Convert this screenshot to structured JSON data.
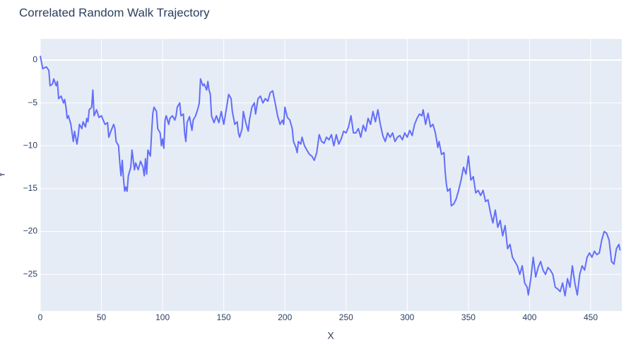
{
  "chart_data": {
    "type": "line",
    "title": "Correlated Random Walk Trajectory",
    "x_label": "X",
    "y_label": "Y",
    "color": "#636efa",
    "grid": true,
    "xlim": [
      0,
      475.4
    ],
    "ylim": [
      -29.27,
      2.47
    ],
    "xticks": [
      0,
      50,
      100,
      150,
      200,
      250,
      300,
      350,
      400,
      450
    ],
    "yticks": [
      {
        "value": -25,
        "label": "−25"
      },
      {
        "value": -20,
        "label": "−20"
      },
      {
        "value": -15,
        "label": "−15"
      },
      {
        "value": -10,
        "label": "−10"
      },
      {
        "value": -5,
        "label": "−5"
      },
      0
    ],
    "x": [
      0,
      2,
      5,
      7,
      8,
      10,
      11,
      13,
      14,
      15,
      17,
      19,
      20,
      21,
      22,
      23,
      25,
      26,
      27,
      28,
      30,
      31,
      32,
      34,
      35,
      37,
      38,
      39,
      40,
      42,
      43,
      44,
      46,
      48,
      50,
      52,
      53,
      55,
      56,
      58,
      60,
      61,
      62,
      64,
      65,
      66,
      67,
      68,
      69,
      70,
      71,
      72,
      74,
      75,
      77,
      78,
      80,
      82,
      84,
      85,
      86,
      87,
      88,
      90,
      91,
      92,
      93,
      95,
      96,
      98,
      99,
      100,
      101,
      102,
      103,
      105,
      106,
      108,
      110,
      111,
      112,
      114,
      115,
      117,
      118,
      119,
      120,
      122,
      124,
      125,
      127,
      129,
      130,
      131,
      133,
      134,
      136,
      137,
      138,
      139,
      140,
      142,
      144,
      146,
      148,
      150,
      152,
      154,
      156,
      157,
      159,
      161,
      162,
      163,
      165,
      166,
      168,
      170,
      171,
      173,
      175,
      176,
      178,
      180,
      182,
      184,
      186,
      188,
      190,
      192,
      194,
      196,
      198,
      199,
      200,
      202,
      204,
      206,
      207,
      209,
      210,
      211,
      213,
      214,
      216,
      218,
      220,
      222,
      224,
      226,
      228,
      230,
      232,
      234,
      236,
      238,
      240,
      242,
      244,
      246,
      248,
      250,
      252,
      254,
      256,
      258,
      260,
      262,
      264,
      266,
      268,
      270,
      272,
      274,
      276,
      278,
      280,
      282,
      284,
      286,
      288,
      290,
      292,
      294,
      296,
      298,
      300,
      302,
      304,
      306,
      308,
      310,
      312,
      313,
      315,
      317,
      319,
      321,
      323,
      325,
      326,
      328,
      330,
      331,
      332,
      333,
      335,
      336,
      338,
      340,
      342,
      344,
      346,
      348,
      350,
      352,
      354,
      356,
      358,
      360,
      362,
      364,
      366,
      368,
      370,
      372,
      374,
      376,
      378,
      380,
      382,
      384,
      386,
      388,
      390,
      392,
      394,
      396,
      398,
      399,
      401,
      403,
      405,
      407,
      409,
      411,
      413,
      415,
      417,
      419,
      421,
      423,
      425,
      427,
      429,
      431,
      433,
      435,
      437,
      439,
      441,
      443,
      445,
      447,
      449,
      451,
      453,
      455,
      457,
      459,
      461,
      463,
      465,
      467,
      469,
      471,
      473,
      474
    ],
    "values": [
      0.5,
      -1,
      -0.8,
      -1.2,
      -3,
      -2.8,
      -2.2,
      -3,
      -2.5,
      -4.5,
      -4.2,
      -5,
      -4.6,
      -5.5,
      -6.8,
      -6.5,
      -7.5,
      -8.5,
      -9.5,
      -8.3,
      -9.8,
      -8.8,
      -7.5,
      -8,
      -7.2,
      -7.8,
      -6.8,
      -7.2,
      -5.8,
      -5.5,
      -3.5,
      -6.5,
      -5.8,
      -6.7,
      -6.5,
      -7.2,
      -7.5,
      -7.3,
      -9,
      -8.2,
      -7.5,
      -8,
      -9.5,
      -10,
      -12,
      -13.5,
      -11.7,
      -13.8,
      -15.3,
      -14.8,
      -15.3,
      -13.5,
      -12.5,
      -10.5,
      -12.8,
      -12,
      -12.8,
      -11.8,
      -12.5,
      -13.5,
      -11.5,
      -13.3,
      -10.5,
      -11.2,
      -8.5,
      -6.2,
      -5.5,
      -6,
      -8,
      -8.5,
      -10,
      -9.2,
      -10.3,
      -7,
      -6.5,
      -7.5,
      -6.8,
      -6.5,
      -7,
      -6.5,
      -5.5,
      -5,
      -6.5,
      -6.3,
      -8.5,
      -9.5,
      -7.3,
      -6.6,
      -8.2,
      -7,
      -6.5,
      -5.6,
      -5,
      -2.2,
      -3,
      -2.8,
      -3.5,
      -2.5,
      -3.5,
      -4,
      -6.5,
      -7.3,
      -6.5,
      -7.3,
      -6,
      -7.5,
      -5.8,
      -4,
      -4.5,
      -6,
      -7.5,
      -7.2,
      -8.5,
      -9,
      -8,
      -6,
      -7.3,
      -8.3,
      -7,
      -5.5,
      -5,
      -6.3,
      -4.5,
      -4.2,
      -5,
      -4.5,
      -4.8,
      -3.8,
      -3.6,
      -5,
      -6.5,
      -7.5,
      -7,
      -7.5,
      -5.5,
      -6.7,
      -7,
      -8,
      -9.5,
      -10.2,
      -10.8,
      -9.5,
      -9.8,
      -9,
      -10,
      -10.5,
      -11,
      -11.2,
      -11.7,
      -10.8,
      -8.7,
      -9.5,
      -9.7,
      -9,
      -9.3,
      -8.7,
      -10,
      -8.7,
      -9.8,
      -9.2,
      -8.3,
      -8.5,
      -7.8,
      -6.5,
      -8.5,
      -8.5,
      -8,
      -9,
      -7.6,
      -8.3,
      -6.8,
      -7.5,
      -6,
      -7.2,
      -5.8,
      -7.5,
      -8.8,
      -9.5,
      -8.5,
      -9,
      -8.5,
      -9.5,
      -9,
      -8.8,
      -9.3,
      -8.5,
      -9,
      -8.2,
      -8.8,
      -7.5,
      -6.8,
      -6.3,
      -6.5,
      -5.8,
      -7.5,
      -6.2,
      -7.8,
      -7.5,
      -8.5,
      -10.2,
      -9.5,
      -11,
      -10.8,
      -13,
      -14.5,
      -15.3,
      -15,
      -17,
      -16.8,
      -16.2,
      -15.2,
      -14,
      -12.5,
      -13.3,
      -11.2,
      -14,
      -13.6,
      -15.5,
      -15.2,
      -15.8,
      -15.2,
      -16.5,
      -16.3,
      -17.8,
      -19,
      -17.5,
      -19.5,
      -18.7,
      -20.5,
      -19.3,
      -22,
      -21.5,
      -23,
      -23.5,
      -24,
      -25,
      -24,
      -26,
      -26.5,
      -27.4,
      -25.5,
      -23,
      -25.3,
      -24.2,
      -23.5,
      -24.5,
      -25,
      -24.2,
      -24.5,
      -25,
      -26.5,
      -26.7,
      -27,
      -26,
      -27.5,
      -25.5,
      -26.5,
      -24,
      -26,
      -27.4,
      -25,
      -24,
      -24.5,
      -23,
      -22.5,
      -23,
      -22.3,
      -22.7,
      -22.5,
      -21,
      -20,
      -20.2,
      -21,
      -23.5,
      -23.8,
      -22,
      -21.5,
      -22.2
    ]
  }
}
